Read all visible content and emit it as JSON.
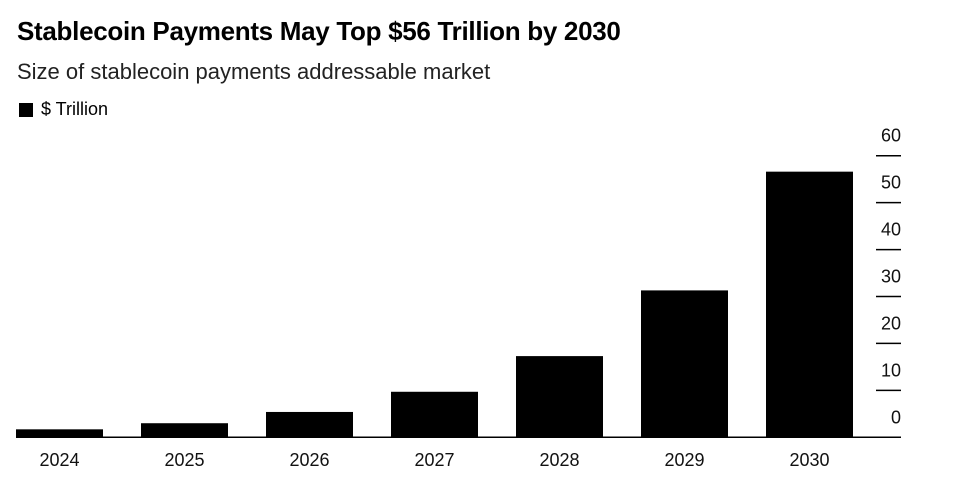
{
  "chart_data": {
    "type": "bar",
    "title": "Stablecoin Payments May Top $56 Trillion by 2030",
    "subtitle": "Size of stablecoin payments addressable market",
    "legend": [
      {
        "name": "$ Trillion",
        "color": "#000000"
      }
    ],
    "legend_position": "top-left",
    "categories": [
      "2024",
      "2025",
      "2026",
      "2027",
      "2028",
      "2029",
      "2030"
    ],
    "values": [
      1.7,
      3.0,
      5.4,
      9.7,
      17.3,
      31.3,
      56.6
    ],
    "yticks": [
      0,
      10,
      20,
      30,
      40,
      50,
      60
    ],
    "ylim": [
      0,
      60
    ],
    "yaxis_position": "right",
    "grid": false,
    "bar_color": "#000000"
  }
}
